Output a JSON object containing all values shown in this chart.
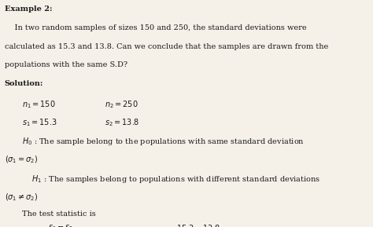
{
  "background_color": "#f5f0e8",
  "text_color": "#1a1a1a",
  "title": "Example 2:",
  "body_line1": "    In two random samples of sizes 150 and 250, the standard deviations were",
  "body_line2": "calculated as 15.3 and 13.8. Can we conclude that the samples are drawn from the",
  "body_line3": "populations with the same S.D?",
  "solution_label": "Solution:",
  "line1a": "$n_1 = 150$",
  "line1b": "$n_2 = 250$",
  "line2a": "$s_1 = 15.3$",
  "line2b": "$s_2 = 13.8$",
  "h0_line1": "$H_0$ : The sample belong to the populations with same standard deviation",
  "h0_line2": "$(\\sigma_1 = \\sigma_2)$",
  "h1_line1": "    $H_1$ : The samples belong to populations with different standard deviations",
  "h1_line2": "$(\\sigma_1 \\neq \\sigma_2)$",
  "test_stat": "    The test statistic is",
  "fs": 7.0,
  "lh": 0.082
}
